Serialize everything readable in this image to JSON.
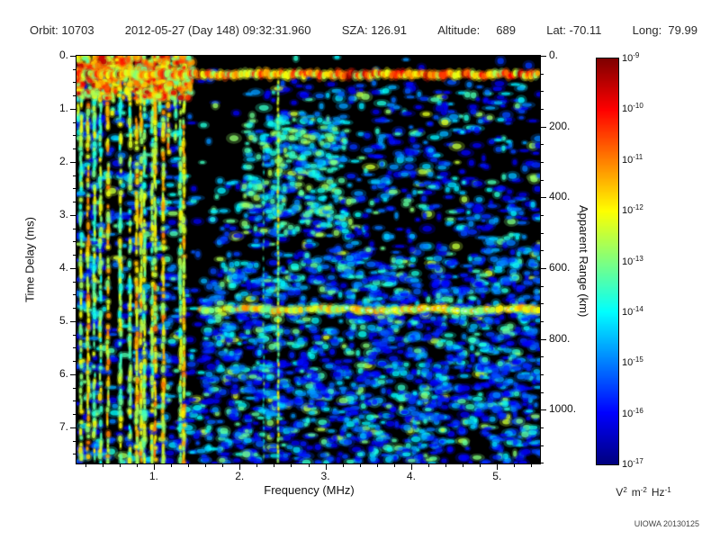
{
  "header": {
    "segments": [
      "Orbit: 10703",
      "2012-05-27 (Day 148) 09:32:31.960",
      "SZA: 126.91",
      "Altitude:     689",
      "Lat: -70.11",
      "Long:  79.99"
    ]
  },
  "chart_data": {
    "type": "heatmap",
    "title": "",
    "xlabel": "Frequency (MHz)",
    "ylabel_left": "Time Delay (ms)",
    "ylabel_right": "Apparent Range (km)",
    "x_range_mhz": [
      0.1,
      5.5
    ],
    "x_ticks": [
      1,
      2,
      3,
      4,
      5
    ],
    "x_tick_labels": [
      "1.",
      "2.",
      "3.",
      "4.",
      "5."
    ],
    "y_range_ms": [
      0,
      7.68
    ],
    "y_ticks_ms": [
      0,
      1,
      2,
      3,
      4,
      5,
      6,
      7
    ],
    "y_tick_labels": [
      "0.",
      "1.",
      "2.",
      "3.",
      "4.",
      "5.",
      "6.",
      "7."
    ],
    "right_ticks_km": [
      0,
      200,
      400,
      600,
      800,
      1000
    ],
    "right_tick_labels": [
      "0.",
      "200.",
      "400.",
      "600.",
      "800.",
      "1000."
    ],
    "km_per_ms": 150,
    "background_color": "#000000",
    "colormap": "jet",
    "colorbar": {
      "scale": "log",
      "mantissa": "10",
      "tick_exponents": [
        -9,
        -10,
        -11,
        -12,
        -13,
        -14,
        -15,
        -16,
        -17
      ],
      "units_parts": [
        {
          "base": "V",
          "exp": "2"
        },
        {
          "base": "m",
          "exp": "-2"
        },
        {
          "base": "Hz",
          "exp": "-1"
        }
      ]
    },
    "features": [
      {
        "name": "transmit-pulse-band",
        "type": "horizontal-band",
        "delay_ms": 0.35,
        "freq_range_mhz": [
          0.1,
          5.5
        ],
        "intensity": "bright"
      },
      {
        "name": "local-plasma-harmonic-stripes",
        "type": "vertical-stripes",
        "freq_range_mhz": [
          0.1,
          1.38
        ],
        "delay_range_ms": [
          0,
          7.68
        ],
        "intensity": "bright"
      },
      {
        "name": "interference-line",
        "type": "vertical-line",
        "freq_mhz": 2.45,
        "delay_range_ms": [
          0.5,
          7.68
        ],
        "intensity": "medium"
      },
      {
        "name": "interference-line-faint",
        "type": "vertical-line",
        "freq_mhz": 2.28,
        "delay_range_ms": [
          1.8,
          7.68
        ],
        "intensity": "faint"
      },
      {
        "name": "surface-reflection-echo",
        "type": "horizontal-band",
        "delay_ms": 4.78,
        "freq_range_mhz": [
          1.55,
          5.5
        ],
        "intensity": "bright"
      },
      {
        "name": "background-speckle",
        "type": "noise",
        "freq_range_mhz": [
          0.1,
          5.5
        ],
        "delay_range_ms": [
          0,
          7.68
        ],
        "intensity": "low"
      }
    ]
  },
  "footer": {
    "credit": "UIOWA 20130125"
  }
}
